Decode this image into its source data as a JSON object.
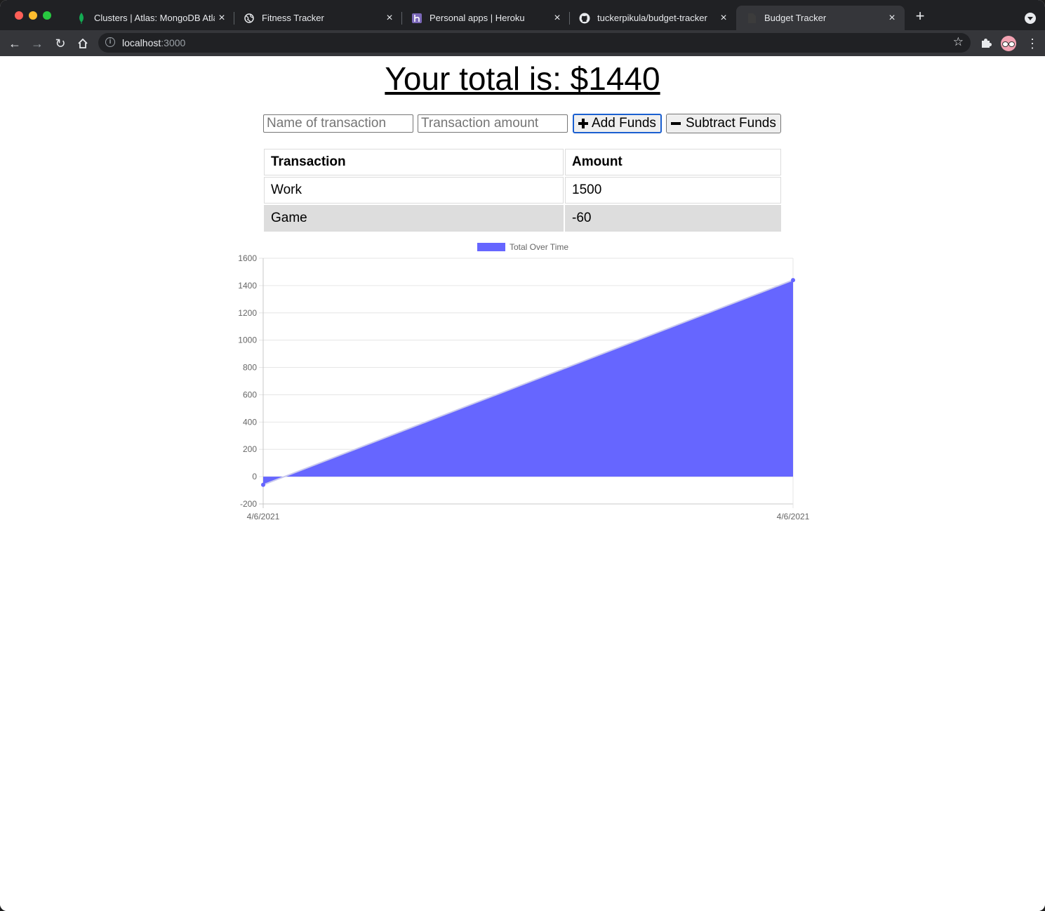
{
  "browser": {
    "tabs": [
      {
        "label": "Clusters | Atlas: MongoDB Atlas",
        "icon": "mongodb-leaf-icon"
      },
      {
        "label": "Fitness Tracker",
        "icon": "globe-icon"
      },
      {
        "label": "Personal apps | Heroku",
        "icon": "heroku-icon"
      },
      {
        "label": "tuckerpikula/budget-tracker",
        "icon": "github-icon"
      },
      {
        "label": "Budget Tracker",
        "icon": "page-icon",
        "active": true
      }
    ],
    "url_host": "localhost",
    "url_port": ":3000"
  },
  "page": {
    "total_text": "Your total is: $",
    "total_value": "1440",
    "form": {
      "name_placeholder": "Name of transaction",
      "amount_placeholder": "Transaction amount",
      "add_label": "Add Funds",
      "subtract_label": "Subtract Funds"
    },
    "table": {
      "headers": [
        "Transaction",
        "Amount"
      ],
      "rows": [
        {
          "name": "Work",
          "amount": "1500"
        },
        {
          "name": "Game",
          "amount": "-60"
        }
      ]
    }
  },
  "colors": {
    "series_fill": "#6666ff",
    "series_line": "#6666ff"
  },
  "chart_data": {
    "type": "area",
    "legend": "Total Over Time",
    "legend_position": "top",
    "x": [
      "4/6/2021",
      "4/6/2021"
    ],
    "series": [
      {
        "name": "Total Over Time",
        "values": [
          -60,
          1440
        ]
      }
    ],
    "ylim": [
      -200,
      1600
    ],
    "yticks": [
      -200,
      0,
      200,
      400,
      600,
      800,
      1000,
      1200,
      1400,
      1600
    ],
    "grid": true
  }
}
